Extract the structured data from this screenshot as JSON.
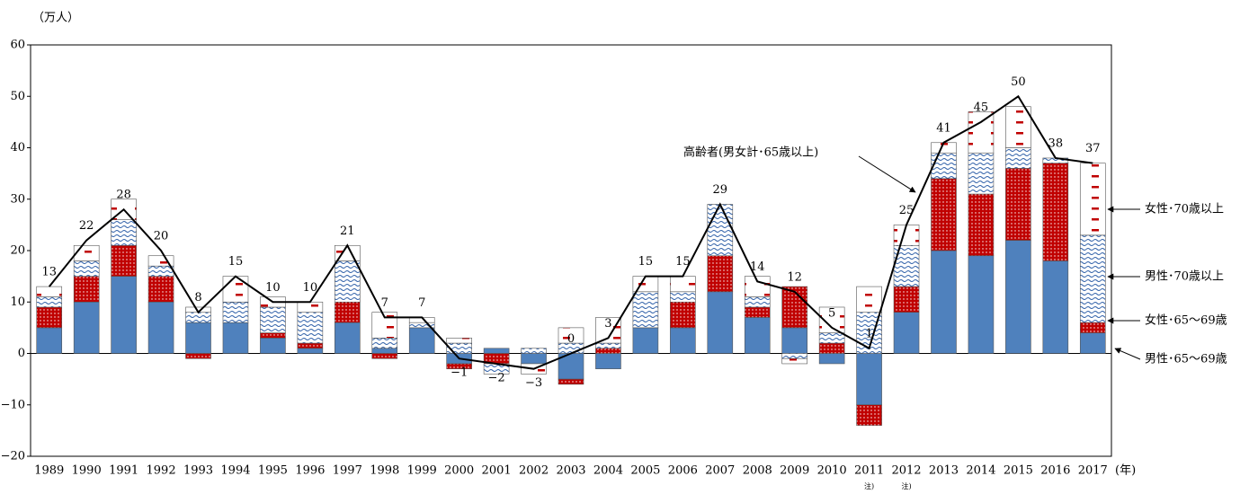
{
  "chart_data": {
    "type": "stacked_bar_line",
    "y_unit": "（万人）",
    "x_unit": "(年)",
    "categories": [
      "1989",
      "1990",
      "1991",
      "1992",
      "1993",
      "1994",
      "1995",
      "1996",
      "1997",
      "1998",
      "1999",
      "2000",
      "2001",
      "2002",
      "2003",
      "2004",
      "2005",
      "2006",
      "2007",
      "2008",
      "2009",
      "2010",
      "2011",
      "2012",
      "2013",
      "2014",
      "2015",
      "2016",
      "2017"
    ],
    "x_notes": [
      null,
      null,
      null,
      null,
      null,
      null,
      null,
      null,
      null,
      null,
      null,
      null,
      null,
      null,
      null,
      null,
      null,
      null,
      null,
      null,
      null,
      null,
      "注)",
      "注)",
      null,
      null,
      null,
      null,
      null
    ],
    "ylim": [
      -20,
      60
    ],
    "yticks": [
      {
        "value": -20,
        "label": "−20"
      },
      {
        "value": -10,
        "label": "−10"
      },
      0,
      10,
      20,
      30,
      40,
      50,
      60
    ],
    "series": [
      {
        "name": "男性･65～69歳",
        "color": "#4f81bd",
        "values": [
          5,
          10,
          15,
          10,
          6,
          6,
          3,
          1,
          6,
          1,
          5,
          -2,
          1,
          -2,
          -5,
          -3,
          5,
          5,
          12,
          7,
          5,
          -2,
          -10,
          8,
          20,
          19,
          22,
          18,
          4
        ]
      },
      {
        "name": "女性･65～69歳",
        "color": "#c00000",
        "values": [
          4,
          5,
          6,
          5,
          -1,
          0,
          1,
          1,
          4,
          -1,
          0,
          -1,
          -2,
          0,
          -1,
          1,
          0,
          5,
          7,
          2,
          8,
          2,
          -4,
          5,
          14,
          12,
          14,
          19,
          2
        ]
      },
      {
        "name": "男性･70歳以上",
        "color": "#2e5fa8",
        "values": [
          2,
          3,
          5,
          2,
          2,
          4,
          5,
          6,
          8,
          2,
          1,
          2,
          -2,
          1,
          2,
          1,
          7,
          2,
          10,
          2,
          -1,
          2,
          8,
          8,
          5,
          8,
          4,
          1,
          17
        ]
      },
      {
        "name": "女性･70歳以上",
        "color": "#c00000",
        "values": [
          2,
          3,
          4,
          2,
          1,
          5,
          2,
          2,
          3,
          5,
          1,
          1,
          0,
          -2,
          3,
          5,
          3,
          3,
          0,
          4,
          -1,
          5,
          5,
          4,
          2,
          8,
          8,
          0,
          14
        ]
      }
    ],
    "line": {
      "name": "高齢者(男女計･65歳以上)",
      "color": "#000000",
      "values": [
        13,
        22,
        28,
        20,
        8,
        15,
        10,
        10,
        21,
        7,
        7,
        -1,
        -2,
        -3,
        0,
        3,
        15,
        15,
        29,
        14,
        12,
        5,
        1,
        25,
        41,
        45,
        50,
        38,
        37
      ],
      "value_labels": [
        "13",
        "22",
        "28",
        "20",
        "8",
        "15",
        "10",
        "10",
        "21",
        "7",
        "7",
        "−1",
        "−2",
        "−3",
        "0",
        "3",
        "15",
        "15",
        "29",
        "14",
        "12",
        "5",
        "1",
        "25",
        "41",
        "45",
        "50",
        "38",
        "37"
      ]
    }
  }
}
